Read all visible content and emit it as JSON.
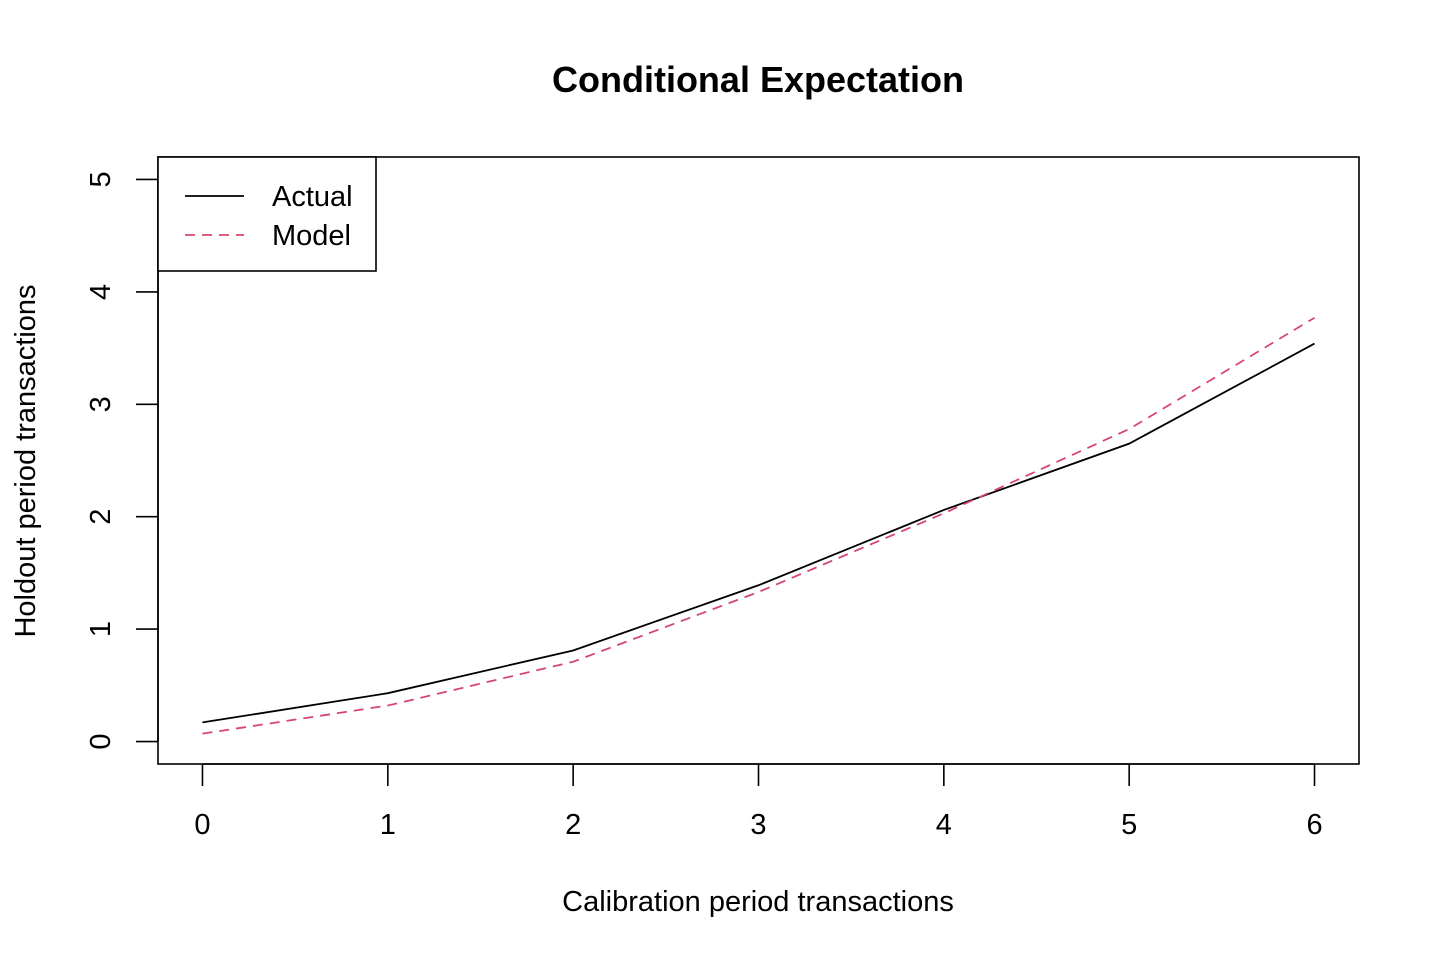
{
  "chart_data": {
    "type": "line",
    "title": "Conditional Expectation",
    "xlabel": "Calibration period transactions",
    "ylabel": "Holdout period transactions",
    "x": [
      0,
      1,
      2,
      3,
      4,
      5,
      6
    ],
    "xlim": [
      -0.24,
      6.24
    ],
    "ylim": [
      -0.2,
      5.2
    ],
    "xticks": [
      "0",
      "1",
      "2",
      "3",
      "4",
      "5",
      "6"
    ],
    "yticks": [
      "0",
      "1",
      "2",
      "3",
      "4",
      "5"
    ],
    "grid": false,
    "legend_position": "top-left",
    "series": [
      {
        "name": "Actual",
        "values": [
          0.17,
          0.43,
          0.81,
          1.39,
          2.06,
          2.65,
          3.54
        ],
        "color": "#000000",
        "style": "solid"
      },
      {
        "name": "Model",
        "values": [
          0.07,
          0.32,
          0.71,
          1.33,
          2.03,
          2.78,
          3.77
        ],
        "color": "#D6476B",
        "style": "dashed"
      }
    ]
  }
}
